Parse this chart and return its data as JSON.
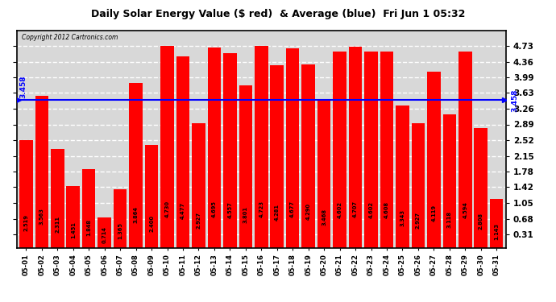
{
  "title": "Daily Solar Energy Value ($ red)  & Average (blue)  Fri Jun 1 05:32",
  "copyright": "Copyright 2012 Cartronics.com",
  "average": 3.458,
  "average_label": "3.458",
  "bar_color": "#FF0000",
  "avg_line_color": "#0000FF",
  "background_color": "#D8D8D8",
  "categories": [
    "05-01",
    "05-02",
    "05-03",
    "05-04",
    "05-05",
    "05-06",
    "05-07",
    "05-08",
    "05-09",
    "05-10",
    "05-11",
    "05-12",
    "05-13",
    "05-14",
    "05-15",
    "05-16",
    "05-17",
    "05-18",
    "05-19",
    "05-20",
    "05-21",
    "05-22",
    "05-23",
    "05-24",
    "05-25",
    "05-26",
    "05-27",
    "05-28",
    "05-29",
    "05-30",
    "05-31"
  ],
  "values": [
    2.519,
    3.563,
    2.311,
    1.451,
    1.848,
    0.714,
    1.365,
    3.864,
    2.4,
    4.73,
    4.477,
    2.927,
    4.695,
    4.557,
    3.801,
    4.723,
    4.281,
    4.677,
    4.29,
    3.468,
    4.602,
    4.707,
    4.602,
    4.608,
    3.343,
    2.927,
    4.119,
    3.118,
    4.594,
    2.808,
    1.143
  ],
  "ylim": [
    0.0,
    5.1
  ],
  "yticks": [
    0.31,
    0.68,
    1.05,
    1.42,
    1.78,
    2.15,
    2.52,
    2.89,
    3.26,
    3.63,
    3.99,
    4.36,
    4.73
  ],
  "grid_color": "#FFFFFF",
  "bar_text_color": "#000000",
  "title_fontsize": 9,
  "label_fontsize": 6,
  "ytick_fontsize": 7.5
}
